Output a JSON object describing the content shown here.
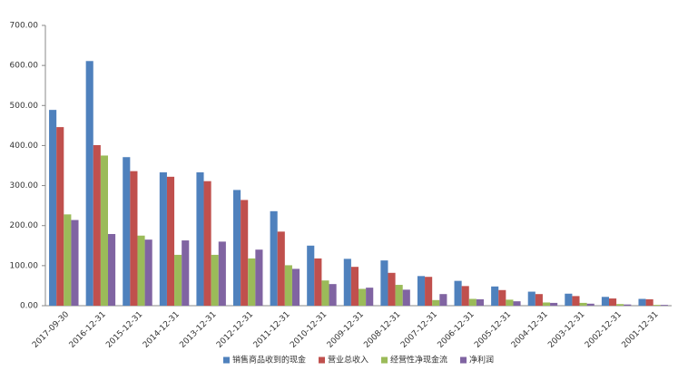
{
  "chart_data": {
    "type": "bar",
    "categories": [
      "2017-09-30",
      "2016-12-31",
      "2015-12-31",
      "2014-12-31",
      "2013-12-31",
      "2012-12-31",
      "2011-12-31",
      "2010-12-31",
      "2009-12-31",
      "2008-12-31",
      "2007-12-31",
      "2006-12-31",
      "2005-12-31",
      "2004-12-31",
      "2003-12-31",
      "2002-12-31",
      "2001-12-31"
    ],
    "series": [
      {
        "name": "销售商品收到的现金",
        "color": "#4f81bd",
        "values": [
          489,
          611,
          371,
          333,
          333,
          289,
          236,
          150,
          117,
          113,
          74,
          62,
          48,
          35,
          30,
          22,
          17
        ]
      },
      {
        "name": "营业总收入",
        "color": "#c0504d",
        "values": [
          446,
          401,
          336,
          322,
          311,
          264,
          185,
          118,
          97,
          82,
          72,
          49,
          39,
          29,
          24,
          18,
          16
        ]
      },
      {
        "name": "经营性净现金流",
        "color": "#9bbb59",
        "values": [
          228,
          375,
          175,
          127,
          127,
          118,
          101,
          63,
          42,
          52,
          14,
          17,
          15,
          8,
          7,
          4,
          2
        ]
      },
      {
        "name": "净利润",
        "color": "#8064a2",
        "values": [
          214,
          179,
          165,
          163,
          160,
          140,
          92,
          54,
          45,
          40,
          29,
          16,
          11,
          7,
          5,
          3,
          2
        ]
      }
    ],
    "ylim": [
      0,
      700
    ],
    "yticks": [
      {
        "value": 0,
        "label": "0.00"
      },
      {
        "value": 100,
        "label": "100.00"
      },
      {
        "value": 200,
        "label": "200.00"
      },
      {
        "value": 300,
        "label": "300.00"
      },
      {
        "value": 400,
        "label": "400.00"
      },
      {
        "value": 500,
        "label": "500.00"
      },
      {
        "value": 600,
        "label": "600.00"
      },
      {
        "value": 700,
        "label": "700.00"
      }
    ],
    "legend": "bottom"
  }
}
